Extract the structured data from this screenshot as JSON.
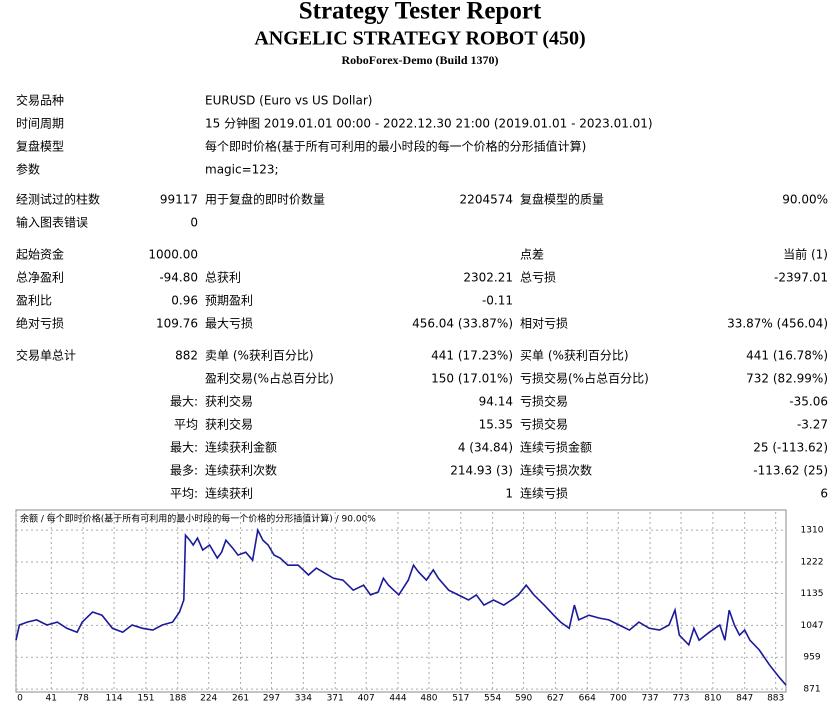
{
  "header": {
    "title": "Strategy Tester Report",
    "subtitle": "ANGELIC STRATEGY ROBOT (450)",
    "build": "RoboForex-Demo (Build 1370)"
  },
  "info": [
    {
      "label": "交易品种",
      "value": "EURUSD (Euro vs US Dollar)"
    },
    {
      "label": "时间周期",
      "value": "15 分钟图 2019.01.01 00:00 - 2022.12.30 21:00 (2019.01.01 - 2023.01.01)"
    },
    {
      "label": "复盘模型",
      "value": "每个即时价格(基于所有可利用的最小时段的每一个价格的分形插值计算)"
    },
    {
      "label": "参数",
      "value": "magic=123;"
    }
  ],
  "groups": [
    [
      [
        "经测试过的柱数",
        "99117",
        "用于复盘的即时价数量",
        "2204574",
        "复盘模型的质量",
        "90.00%"
      ],
      [
        "输入图表错误",
        "0",
        null,
        null,
        null,
        null
      ]
    ],
    [
      [
        "起始资金",
        "1000.00",
        null,
        null,
        "点差",
        "当前 (1)"
      ],
      [
        "总净盈利",
        "-94.80",
        "总获利",
        "2302.21",
        "总亏损",
        "-2397.01"
      ],
      [
        "盈利比",
        "0.96",
        "预期盈利",
        "-0.11",
        null,
        null
      ],
      [
        "绝对亏损",
        "109.76",
        "最大亏损",
        "456.04 (33.87%)",
        "相对亏损",
        "33.87% (456.04)"
      ]
    ],
    [
      [
        "交易单总计",
        "882",
        "卖单 (%获利百分比)",
        "441 (17.23%)",
        "买单 (%获利百分比)",
        "441 (16.78%)"
      ],
      [
        null,
        null,
        "盈利交易(%占总百分比)",
        "150 (17.01%)",
        "亏损交易(%占总百分比)",
        "732 (82.99%)"
      ],
      [
        null,
        "最大:",
        "获利交易",
        "94.14",
        "亏损交易",
        "-35.06"
      ],
      [
        null,
        "平均",
        "获利交易",
        "15.35",
        "亏损交易",
        "-3.27"
      ],
      [
        null,
        "最大:",
        "连续获利金额",
        "4 (34.84)",
        "连续亏损金额",
        "25 (-113.62)"
      ],
      [
        null,
        "最多:",
        "连续获利次数",
        "214.93 (3)",
        "连续亏损次数",
        "-113.62 (25)"
      ],
      [
        null,
        "平均:",
        "连续获利",
        "1",
        "连续亏损",
        "6"
      ]
    ]
  ],
  "chart_data": {
    "type": "line",
    "title": "余额 / 每个即时价格(基于所有可利用的最小时段的每一个价格的分形插值计算) / 90.00%",
    "color": "#1a1a9a",
    "grid": true,
    "xlim": [
      0,
      895
    ],
    "ylim": [
      863,
      1360
    ],
    "xticks": [
      0,
      41,
      78,
      114,
      151,
      188,
      224,
      261,
      297,
      334,
      371,
      407,
      444,
      480,
      517,
      554,
      590,
      627,
      664,
      700,
      737,
      773,
      810,
      847,
      883
    ],
    "yticks": [
      871,
      959,
      1047,
      1135,
      1222,
      1310
    ],
    "x": [
      0,
      4,
      13,
      24,
      36,
      48,
      59,
      71,
      77,
      89,
      100,
      112,
      124,
      135,
      147,
      159,
      170,
      182,
      190,
      195,
      197,
      202,
      206,
      211,
      217,
      225,
      234,
      239,
      244,
      252,
      258,
      267,
      275,
      281,
      287,
      293,
      300,
      307,
      316,
      328,
      340,
      349,
      357,
      369,
      380,
      392,
      404,
      412,
      421,
      427,
      433,
      445,
      456,
      462,
      468,
      477,
      485,
      491,
      503,
      514,
      526,
      535,
      544,
      555,
      567,
      579,
      584,
      593,
      602,
      614,
      625,
      633,
      643,
      649,
      654,
      666,
      678,
      689,
      701,
      713,
      724,
      736,
      748,
      759,
      766,
      771,
      782,
      788,
      794,
      806,
      818,
      824,
      829,
      835,
      841,
      847,
      853,
      864,
      876,
      888,
      895
    ],
    "values": [
      1006,
      1048,
      1056,
      1062,
      1048,
      1056,
      1039,
      1028,
      1056,
      1084,
      1075,
      1039,
      1028,
      1048,
      1039,
      1034,
      1048,
      1056,
      1084,
      1117,
      1296,
      1282,
      1269,
      1288,
      1255,
      1269,
      1233,
      1249,
      1282,
      1260,
      1241,
      1249,
      1227,
      1310,
      1282,
      1269,
      1241,
      1233,
      1213,
      1213,
      1186,
      1205,
      1194,
      1177,
      1172,
      1144,
      1158,
      1131,
      1139,
      1177,
      1158,
      1131,
      1172,
      1213,
      1194,
      1172,
      1200,
      1177,
      1144,
      1131,
      1117,
      1131,
      1103,
      1117,
      1103,
      1122,
      1131,
      1158,
      1131,
      1103,
      1075,
      1056,
      1039,
      1103,
      1062,
      1075,
      1067,
      1062,
      1048,
      1034,
      1056,
      1039,
      1034,
      1048,
      1089,
      1020,
      993,
      1039,
      1006,
      1028,
      1048,
      1006,
      1089,
      1048,
      1020,
      1034,
      1006,
      979,
      937,
      901,
      882
    ]
  }
}
